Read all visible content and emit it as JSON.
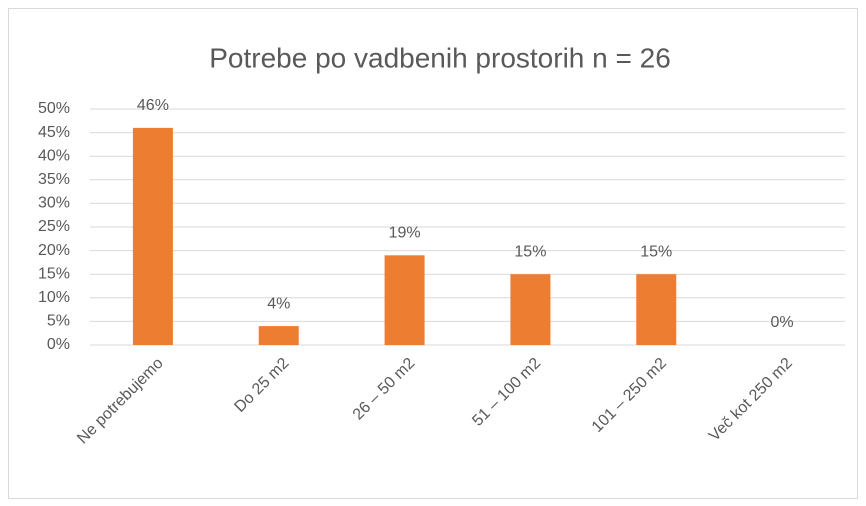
{
  "chart_data": {
    "type": "bar",
    "title": "Potrebe po vadbenih prostorih n = 26",
    "categories": [
      "Ne potrebujemo",
      "Do 25 m2",
      "26 – 50 m2",
      "51 – 100 m2",
      "101 – 250 m2",
      "Več kot 250 m2"
    ],
    "values": [
      46,
      4,
      19,
      15,
      15,
      0
    ],
    "value_labels": [
      "46%",
      "4%",
      "19%",
      "15%",
      "15%",
      "0%"
    ],
    "color": "#ed7d31",
    "ylim": [
      0,
      50
    ],
    "yticks": [
      {
        "value": 0,
        "label": "0%"
      },
      {
        "value": 5,
        "label": "5%"
      },
      {
        "value": 10,
        "label": "10%"
      },
      {
        "value": 15,
        "label": "15%"
      },
      {
        "value": 20,
        "label": "20%"
      },
      {
        "value": 25,
        "label": "25%"
      },
      {
        "value": 30,
        "label": "30%"
      },
      {
        "value": 35,
        "label": "35%"
      },
      {
        "value": 40,
        "label": "40%"
      },
      {
        "value": 45,
        "label": "45%"
      },
      {
        "value": 50,
        "label": "50%"
      }
    ],
    "grid": true
  }
}
